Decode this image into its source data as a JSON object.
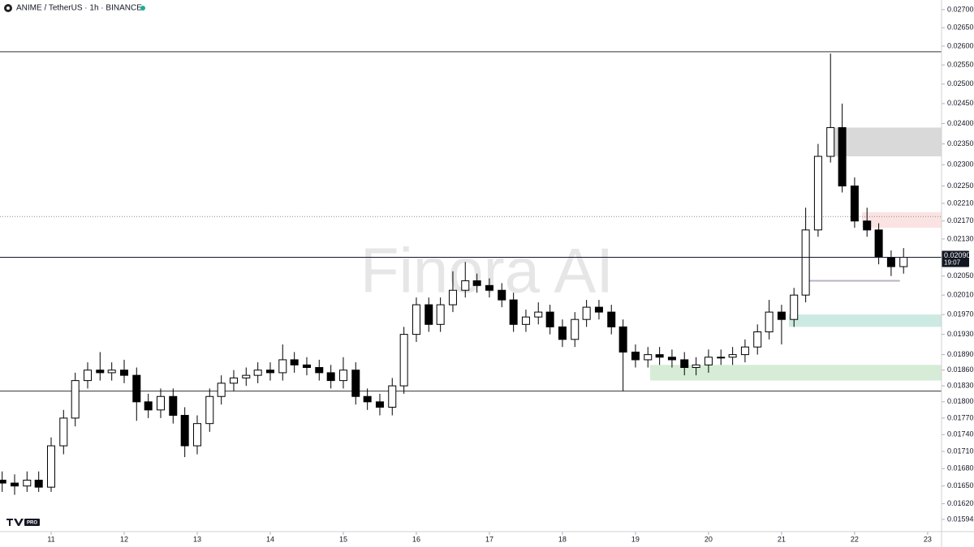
{
  "chart_data": {
    "type": "candlestick",
    "title": "ANIME / TetherUS · 1h · BINANCE",
    "watermark": "Finora AI",
    "log_scale": true,
    "up_color": "#ffffff",
    "down_color": "#000000",
    "wick_color": "#000000",
    "x": [
      10.33,
      10.5,
      10.67,
      10.83,
      11,
      11.17,
      11.33,
      11.5,
      11.67,
      11.83,
      12,
      12.17,
      12.33,
      12.5,
      12.67,
      12.83,
      13,
      13.17,
      13.33,
      13.5,
      13.67,
      13.83,
      14,
      14.17,
      14.33,
      14.5,
      14.67,
      14.83,
      15,
      15.17,
      15.33,
      15.5,
      15.67,
      15.83,
      16,
      16.17,
      16.33,
      16.5,
      16.67,
      16.83,
      17,
      17.17,
      17.33,
      17.5,
      17.67,
      17.83,
      18,
      18.17,
      18.33,
      18.5,
      18.67,
      18.83,
      19,
      19.17,
      19.33,
      19.5,
      19.67,
      19.83,
      20,
      20.17,
      20.33,
      20.5,
      20.67,
      20.83,
      21,
      21.17,
      21.33,
      21.5,
      21.67,
      21.83,
      22,
      22.17,
      22.33,
      22.5,
      22.67
    ],
    "open": [
      0.0166,
      0.01655,
      0.0165,
      0.0166,
      0.01648,
      0.0172,
      0.0177,
      0.0184,
      0.0186,
      0.01855,
      0.0186,
      0.0185,
      0.018,
      0.01785,
      0.0181,
      0.01775,
      0.0172,
      0.0176,
      0.0181,
      0.01835,
      0.01845,
      0.0185,
      0.0186,
      0.01855,
      0.0188,
      0.0187,
      0.01865,
      0.01855,
      0.0184,
      0.0186,
      0.0181,
      0.018,
      0.0179,
      0.0183,
      0.0193,
      0.0199,
      0.0195,
      0.0199,
      0.0202,
      0.0204,
      0.0203,
      0.0202,
      0.02,
      0.0195,
      0.01965,
      0.01975,
      0.01945,
      0.0192,
      0.0196,
      0.01985,
      0.01975,
      0.01945,
      0.01895,
      0.0188,
      0.0189,
      0.01885,
      0.0188,
      0.01865,
      0.0187,
      0.01885,
      0.01885,
      0.0189,
      0.01905,
      0.01935,
      0.01975,
      0.0196,
      0.0201,
      0.0215,
      0.0232,
      0.0239,
      0.0225,
      0.0217,
      0.0215,
      0.0209,
      0.0207
    ],
    "high": [
      0.01675,
      0.0167,
      0.01675,
      0.01675,
      0.01735,
      0.01785,
      0.01855,
      0.01875,
      0.01895,
      0.01875,
      0.0188,
      0.01865,
      0.01815,
      0.01825,
      0.01825,
      0.0179,
      0.01775,
      0.01825,
      0.0185,
      0.0186,
      0.01865,
      0.01875,
      0.01875,
      0.0191,
      0.01895,
      0.01885,
      0.0188,
      0.0187,
      0.01885,
      0.01875,
      0.01825,
      0.01815,
      0.01845,
      0.01945,
      0.02005,
      0.02005,
      0.02005,
      0.0206,
      0.0208,
      0.02055,
      0.02045,
      0.02035,
      0.02015,
      0.0198,
      0.01995,
      0.0199,
      0.0196,
      0.01975,
      0.02,
      0.02,
      0.0199,
      0.0196,
      0.0191,
      0.01905,
      0.01905,
      0.019,
      0.01895,
      0.01885,
      0.019,
      0.019,
      0.01905,
      0.0192,
      0.0195,
      0.02,
      0.0199,
      0.02025,
      0.022,
      0.0235,
      0.0258,
      0.0245,
      0.0227,
      0.022,
      0.02165,
      0.02105,
      0.0211
    ],
    "low": [
      0.0164,
      0.01635,
      0.0164,
      0.0164,
      0.0164,
      0.01705,
      0.01755,
      0.01825,
      0.0184,
      0.0184,
      0.01835,
      0.01765,
      0.0177,
      0.0177,
      0.0176,
      0.017,
      0.01705,
      0.01745,
      0.01795,
      0.0182,
      0.0183,
      0.01835,
      0.0184,
      0.0184,
      0.01855,
      0.0185,
      0.0184,
      0.01825,
      0.01825,
      0.01795,
      0.01785,
      0.01775,
      0.01775,
      0.01815,
      0.01915,
      0.01935,
      0.01935,
      0.01975,
      0.02005,
      0.02015,
      0.02005,
      0.01985,
      0.01935,
      0.01935,
      0.0195,
      0.0193,
      0.01905,
      0.01905,
      0.01945,
      0.0196,
      0.0193,
      0.0182,
      0.01865,
      0.01865,
      0.0187,
      0.01865,
      0.0185,
      0.0185,
      0.01855,
      0.0187,
      0.0187,
      0.01875,
      0.0189,
      0.0192,
      0.0191,
      0.01945,
      0.01995,
      0.02135,
      0.02305,
      0.02235,
      0.02155,
      0.02135,
      0.02075,
      0.0205,
      0.02055
    ],
    "close": [
      0.01655,
      0.0165,
      0.0166,
      0.01648,
      0.0172,
      0.0177,
      0.0184,
      0.0186,
      0.01855,
      0.0186,
      0.0185,
      0.018,
      0.01785,
      0.0181,
      0.01775,
      0.0172,
      0.0176,
      0.0181,
      0.01835,
      0.01845,
      0.0185,
      0.0186,
      0.01855,
      0.0188,
      0.0187,
      0.01865,
      0.01855,
      0.0184,
      0.0186,
      0.0181,
      0.018,
      0.0179,
      0.0183,
      0.0193,
      0.0199,
      0.0195,
      0.0199,
      0.0202,
      0.0204,
      0.0203,
      0.0202,
      0.02,
      0.0195,
      0.01965,
      0.01975,
      0.01945,
      0.0192,
      0.0196,
      0.01985,
      0.01975,
      0.01945,
      0.01895,
      0.0188,
      0.0189,
      0.01885,
      0.0188,
      0.01865,
      0.0187,
      0.01885,
      0.01885,
      0.0189,
      0.01905,
      0.01935,
      0.01975,
      0.0196,
      0.0201,
      0.0215,
      0.0232,
      0.0239,
      0.0225,
      0.0217,
      0.0215,
      0.0209,
      0.0207,
      0.0209
    ],
    "xlim": [
      10.3,
      23.19
    ],
    "xticks": [
      11,
      12,
      13,
      14,
      15,
      16,
      17,
      18,
      19,
      20,
      21,
      22,
      23
    ],
    "ylim": [
      0.01574,
      0.02727
    ],
    "yticks": [
      {
        "value": 0.027,
        "label": "0.02700"
      },
      {
        "value": 0.0265,
        "label": "0.02650"
      },
      {
        "value": 0.026,
        "label": "0.02600"
      },
      {
        "value": 0.0255,
        "label": "0.02550"
      },
      {
        "value": 0.025,
        "label": "0.02500"
      },
      {
        "value": 0.0245,
        "label": "0.02450"
      },
      {
        "value": 0.024,
        "label": "0.02400"
      },
      {
        "value": 0.0235,
        "label": "0.02350"
      },
      {
        "value": 0.023,
        "label": "0.02300"
      },
      {
        "value": 0.0225,
        "label": "0.02250"
      },
      {
        "value": 0.0221,
        "label": "0.02210"
      },
      {
        "value": 0.0217,
        "label": "0.02170"
      },
      {
        "value": 0.0213,
        "label": "0.02130"
      },
      {
        "value": 0.0205,
        "label": "0.02050"
      },
      {
        "value": 0.0201,
        "label": "0.02010"
      },
      {
        "value": 0.0197,
        "label": "0.01970"
      },
      {
        "value": 0.0193,
        "label": "0.01930"
      },
      {
        "value": 0.0189,
        "label": "0.01890"
      },
      {
        "value": 0.0186,
        "label": "0.01860"
      },
      {
        "value": 0.0183,
        "label": "0.01830"
      },
      {
        "value": 0.018,
        "label": "0.01800"
      },
      {
        "value": 0.0177,
        "label": "0.01770"
      },
      {
        "value": 0.0174,
        "label": "0.01740"
      },
      {
        "value": 0.0171,
        "label": "0.01710"
      },
      {
        "value": 0.0168,
        "label": "0.01680"
      },
      {
        "value": 0.0165,
        "label": "0.01650"
      },
      {
        "value": 0.0162,
        "label": "0.01620"
      },
      {
        "value": 0.01594,
        "label": "0.01594"
      }
    ],
    "last_price": {
      "value": 0.0209,
      "label": "0.02090"
    },
    "countdown": "19:07",
    "levels": [
      {
        "value": 0.02585,
        "style": "solid",
        "color": "#333333"
      },
      {
        "value": 0.0218,
        "style": "dotted",
        "color": "#888888"
      },
      {
        "value": 0.0182,
        "style": "solid",
        "color": "#333333"
      },
      {
        "value": 0.0204,
        "style": "solid",
        "color": "#b8b2c4",
        "x_start": 21.3,
        "x_end": 22.62
      }
    ],
    "zones": [
      {
        "top": 0.0239,
        "bottom": 0.0232,
        "x_start": 21.7,
        "color": "#d9d9d9"
      },
      {
        "top": 0.0219,
        "bottom": 0.02155,
        "x_start": 22.1,
        "color": "#fbe3e3"
      },
      {
        "top": 0.0197,
        "bottom": 0.01945,
        "x_start": 21.1,
        "color": "#cdeae2"
      },
      {
        "top": 0.0187,
        "bottom": 0.0184,
        "x_start": 19.2,
        "color": "#d6ecd6"
      }
    ]
  }
}
